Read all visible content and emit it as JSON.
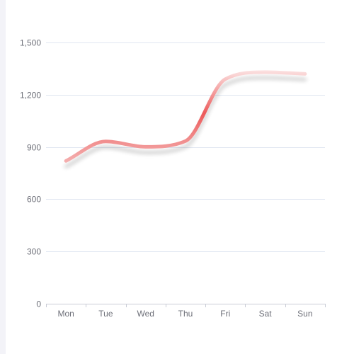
{
  "chart_data": {
    "type": "line",
    "categories": [
      "Mon",
      "Tue",
      "Wed",
      "Thu",
      "Fri",
      "Sat",
      "Sun"
    ],
    "series": [
      {
        "values": [
          820,
          932,
          901,
          934,
          1290,
          1330,
          1320
        ],
        "color": "#ee6666",
        "smooth": true
      }
    ],
    "ylim": [
      0,
      1500
    ],
    "yticks": [
      0,
      300,
      600,
      900,
      1200,
      1500
    ],
    "ytick_labels": [
      "0",
      "300",
      "600",
      "900",
      "1,200",
      "1,500"
    ],
    "grid": true,
    "title": "",
    "xlabel": "",
    "ylabel": ""
  }
}
